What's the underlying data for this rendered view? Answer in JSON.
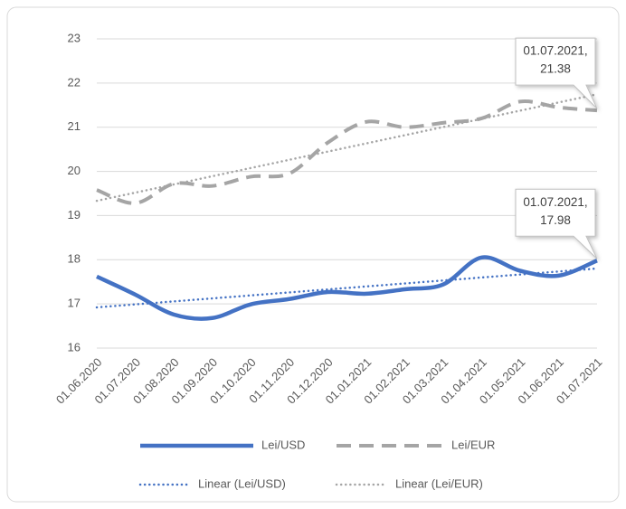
{
  "chart_data": {
    "type": "line",
    "smooth": true,
    "categories": [
      "01.06.2020",
      "01.07.2020",
      "01.08.2020",
      "01.09.2020",
      "01.10.2020",
      "01.11.2020",
      "01.12.2020",
      "01.01.2021",
      "01.02.2021",
      "01.03.2021",
      "01.04.2021",
      "01.05.2021",
      "01.06.2021",
      "01.07.2021"
    ],
    "series": [
      {
        "name": "Lei/USD",
        "color": "#4472c4",
        "style": "solid",
        "values": [
          17.62,
          17.21,
          16.76,
          16.68,
          16.99,
          17.11,
          17.27,
          17.23,
          17.33,
          17.44,
          18.05,
          17.75,
          17.64,
          17.98
        ]
      },
      {
        "name": "Lei/EUR",
        "color": "#a5a5a5",
        "style": "dashed",
        "values": [
          19.58,
          19.28,
          19.72,
          19.67,
          19.88,
          19.95,
          20.65,
          21.12,
          21.0,
          21.1,
          21.2,
          21.58,
          21.45,
          21.38
        ]
      }
    ],
    "trendlines": [
      {
        "name": "Linear (Lei/USD)",
        "of": "Lei/USD",
        "color": "#4472c4"
      },
      {
        "name": "Linear (Lei/EUR)",
        "of": "Lei/EUR",
        "color": "#a5a5a5"
      }
    ],
    "annotations": [
      {
        "of": "Lei/EUR",
        "text": [
          "01.07.2021,",
          "21.38"
        ]
      },
      {
        "of": "Lei/USD",
        "text": [
          "01.07.2021,",
          "17.98"
        ]
      }
    ],
    "ylim": [
      16,
      23
    ],
    "yticks": [
      16,
      17,
      18,
      19,
      20,
      21,
      22,
      23
    ],
    "grid": true,
    "legend": "bottom"
  }
}
